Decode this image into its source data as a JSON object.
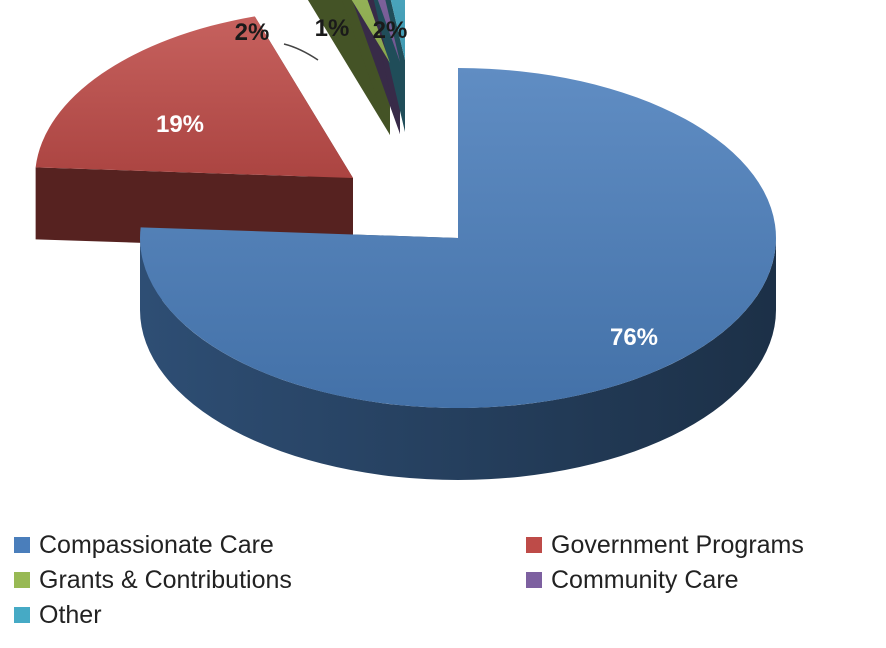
{
  "chart_data": {
    "type": "pie",
    "title": "",
    "style": "3d-exploded",
    "legend_position": "bottom",
    "slices": [
      {
        "name": "Compassionate Care",
        "value": 76,
        "label": "76%",
        "color": "#4a7ebb"
      },
      {
        "name": "Government Programs",
        "value": 19,
        "label": "19%",
        "color": "#be4b48"
      },
      {
        "name": "Grants & Contributions",
        "value": 2,
        "label": "2%",
        "color": "#98b954"
      },
      {
        "name": "Community Care",
        "value": 1,
        "label": "1%",
        "color": "#7d60a0"
      },
      {
        "name": "Other",
        "value": 2,
        "label": "2%",
        "color": "#46aac5"
      }
    ]
  }
}
